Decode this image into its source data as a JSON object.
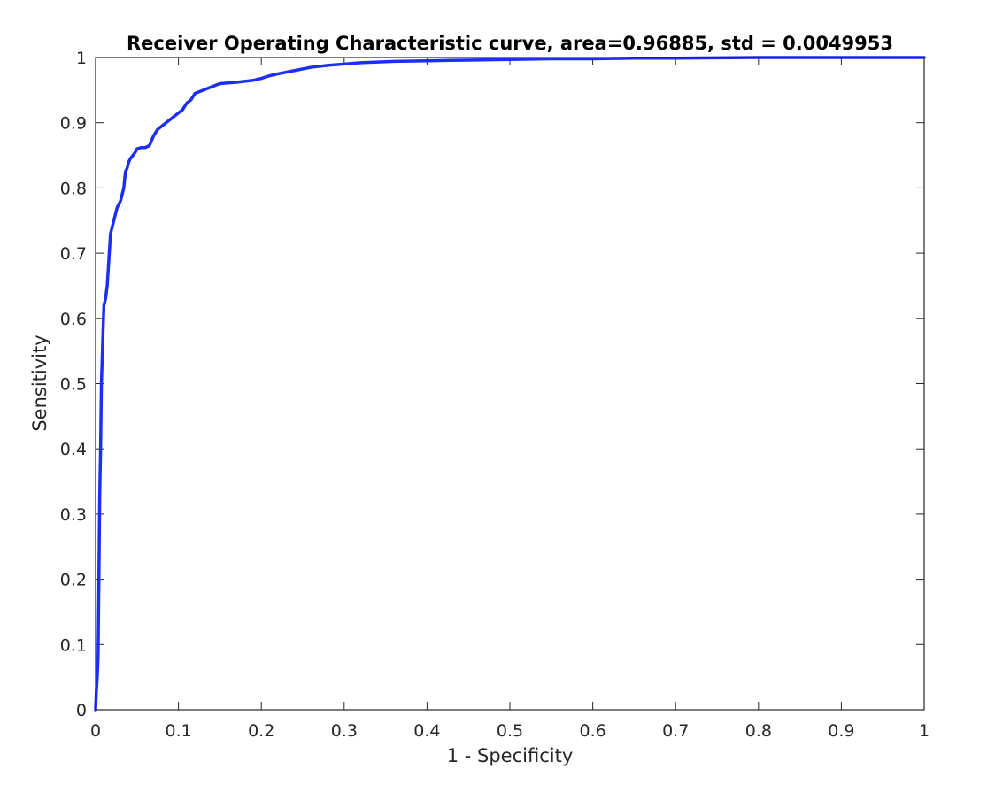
{
  "chart_data": {
    "type": "line",
    "title": "Receiver Operating Characteristic curve, area=0.96885, std = 0.0049953",
    "xlabel": "1 - Specificity",
    "ylabel": "Sensitivity",
    "xlim": [
      0,
      1
    ],
    "ylim": [
      0,
      1
    ],
    "xticks": [
      "0",
      "0.1",
      "0.2",
      "0.3",
      "0.4",
      "0.5",
      "0.6",
      "0.7",
      "0.8",
      "0.9",
      "1"
    ],
    "yticks": [
      "0",
      "0.1",
      "0.2",
      "0.3",
      "0.4",
      "0.5",
      "0.6",
      "0.7",
      "0.8",
      "0.9",
      "1"
    ],
    "grid": false,
    "legend": "none",
    "series": [
      {
        "color": "#1a2ef5",
        "x": [
          0,
          0.001,
          0.002,
          0.003,
          0.004,
          0.005,
          0.006,
          0.007,
          0.008,
          0.009,
          0.01,
          0.012,
          0.014,
          0.016,
          0.018,
          0.02,
          0.022,
          0.024,
          0.026,
          0.028,
          0.03,
          0.032,
          0.034,
          0.036,
          0.038,
          0.04,
          0.042,
          0.045,
          0.048,
          0.05,
          0.055,
          0.06,
          0.065,
          0.07,
          0.075,
          0.08,
          0.085,
          0.09,
          0.095,
          0.1,
          0.105,
          0.11,
          0.115,
          0.12,
          0.13,
          0.14,
          0.15,
          0.17,
          0.19,
          0.2,
          0.21,
          0.22,
          0.24,
          0.26,
          0.28,
          0.3,
          0.32,
          0.34,
          0.36,
          0.4,
          0.45,
          0.5,
          0.55,
          0.6,
          0.65,
          0.7,
          0.8,
          0.9,
          1.0
        ],
        "y": [
          0,
          0.03,
          0.05,
          0.08,
          0.2,
          0.33,
          0.4,
          0.5,
          0.54,
          0.58,
          0.62,
          0.63,
          0.65,
          0.69,
          0.73,
          0.74,
          0.75,
          0.76,
          0.77,
          0.775,
          0.78,
          0.79,
          0.8,
          0.825,
          0.83,
          0.84,
          0.845,
          0.85,
          0.855,
          0.86,
          0.862,
          0.862,
          0.865,
          0.88,
          0.89,
          0.895,
          0.9,
          0.905,
          0.91,
          0.915,
          0.92,
          0.93,
          0.935,
          0.945,
          0.95,
          0.955,
          0.96,
          0.962,
          0.965,
          0.968,
          0.972,
          0.975,
          0.98,
          0.985,
          0.988,
          0.99,
          0.992,
          0.993,
          0.994,
          0.995,
          0.996,
          0.997,
          0.998,
          0.998,
          0.999,
          0.999,
          1.0,
          1.0,
          1.0
        ]
      }
    ]
  }
}
